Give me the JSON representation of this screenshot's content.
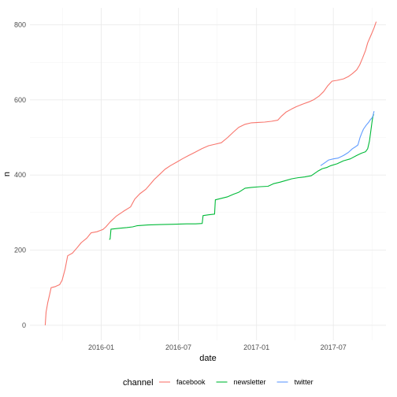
{
  "chart_data": {
    "type": "line",
    "title": "",
    "xlabel": "date",
    "ylabel": "n",
    "x_tick_labels": [
      "2016-01",
      "2016-07",
      "2017-01",
      "2017-07"
    ],
    "x_tick_dates": [
      "2016-01-01",
      "2016-07-01",
      "2017-01-01",
      "2017-07-01"
    ],
    "y_tick_labels": [
      "0",
      "200",
      "400",
      "600",
      "800"
    ],
    "y_ticks": [
      0,
      200,
      400,
      600,
      800
    ],
    "xlim": [
      "2015-07-17",
      "2017-11-02"
    ],
    "ylim": [
      -40,
      845
    ],
    "grid": true,
    "legend": {
      "title": "channel",
      "position": "bottom"
    },
    "series": [
      {
        "name": "facebook",
        "color": "#F8766D",
        "points": [
          [
            "2015-08-22",
            0
          ],
          [
            "2015-08-24",
            35
          ],
          [
            "2015-08-28",
            60
          ],
          [
            "2015-09-01",
            80
          ],
          [
            "2015-09-05",
            100
          ],
          [
            "2015-09-15",
            103
          ],
          [
            "2015-09-25",
            108
          ],
          [
            "2015-10-01",
            120
          ],
          [
            "2015-10-08",
            150
          ],
          [
            "2015-10-14",
            185
          ],
          [
            "2015-10-25",
            192
          ],
          [
            "2015-11-04",
            205
          ],
          [
            "2015-11-15",
            220
          ],
          [
            "2015-11-28",
            232
          ],
          [
            "2015-12-08",
            246
          ],
          [
            "2015-12-22",
            249
          ],
          [
            "2016-01-05",
            255
          ],
          [
            "2016-01-12",
            262
          ],
          [
            "2016-01-22",
            275
          ],
          [
            "2016-02-05",
            290
          ],
          [
            "2016-02-22",
            303
          ],
          [
            "2016-03-10",
            315
          ],
          [
            "2016-03-20",
            336
          ],
          [
            "2016-04-01",
            350
          ],
          [
            "2016-04-15",
            362
          ],
          [
            "2016-04-25",
            375
          ],
          [
            "2016-05-05",
            388
          ],
          [
            "2016-05-18",
            402
          ],
          [
            "2016-05-30",
            415
          ],
          [
            "2016-06-12",
            425
          ],
          [
            "2016-06-28",
            435
          ],
          [
            "2016-07-10",
            443
          ],
          [
            "2016-07-25",
            452
          ],
          [
            "2016-08-08",
            460
          ],
          [
            "2016-08-25",
            470
          ],
          [
            "2016-09-10",
            478
          ],
          [
            "2016-09-25",
            482
          ],
          [
            "2016-10-10",
            486
          ],
          [
            "2016-10-25",
            500
          ],
          [
            "2016-11-08",
            515
          ],
          [
            "2016-11-20",
            527
          ],
          [
            "2016-12-05",
            535
          ],
          [
            "2016-12-20",
            539
          ],
          [
            "2017-01-05",
            540
          ],
          [
            "2017-01-20",
            541
          ],
          [
            "2017-02-05",
            543
          ],
          [
            "2017-02-20",
            546
          ],
          [
            "2017-03-01",
            557
          ],
          [
            "2017-03-12",
            568
          ],
          [
            "2017-03-25",
            576
          ],
          [
            "2017-04-05",
            582
          ],
          [
            "2017-04-20",
            589
          ],
          [
            "2017-05-05",
            595
          ],
          [
            "2017-05-15",
            600
          ],
          [
            "2017-05-28",
            610
          ],
          [
            "2017-06-08",
            622
          ],
          [
            "2017-06-18",
            638
          ],
          [
            "2017-06-28",
            650
          ],
          [
            "2017-07-10",
            652
          ],
          [
            "2017-07-25",
            656
          ],
          [
            "2017-08-05",
            662
          ],
          [
            "2017-08-15",
            670
          ],
          [
            "2017-08-25",
            680
          ],
          [
            "2017-09-01",
            693
          ],
          [
            "2017-09-08",
            712
          ],
          [
            "2017-09-15",
            732
          ],
          [
            "2017-09-20",
            752
          ],
          [
            "2017-09-25",
            765
          ],
          [
            "2017-09-30",
            778
          ],
          [
            "2017-10-05",
            792
          ],
          [
            "2017-10-10",
            808
          ]
        ]
      },
      {
        "name": "newsletter",
        "color": "#00BA38",
        "points": [
          [
            "2016-01-20",
            228
          ],
          [
            "2016-01-22",
            230
          ],
          [
            "2016-01-24",
            256
          ],
          [
            "2016-02-10",
            258
          ],
          [
            "2016-03-01",
            260
          ],
          [
            "2016-03-15",
            262
          ],
          [
            "2016-03-25",
            265
          ],
          [
            "2016-04-20",
            267
          ],
          [
            "2016-05-20",
            268
          ],
          [
            "2016-06-20",
            269
          ],
          [
            "2016-07-20",
            270
          ],
          [
            "2016-08-10",
            270
          ],
          [
            "2016-08-26",
            271
          ],
          [
            "2016-08-28",
            292
          ],
          [
            "2016-09-10",
            294
          ],
          [
            "2016-09-24",
            296
          ],
          [
            "2016-09-26",
            334
          ],
          [
            "2016-10-10",
            338
          ],
          [
            "2016-10-25",
            342
          ],
          [
            "2016-11-08",
            349
          ],
          [
            "2016-11-20",
            354
          ],
          [
            "2016-12-05",
            365
          ],
          [
            "2016-12-20",
            367
          ],
          [
            "2017-01-10",
            369
          ],
          [
            "2017-01-28",
            370
          ],
          [
            "2017-02-10",
            377
          ],
          [
            "2017-02-25",
            381
          ],
          [
            "2017-03-10",
            385
          ],
          [
            "2017-03-25",
            390
          ],
          [
            "2017-04-10",
            393
          ],
          [
            "2017-04-25",
            395
          ],
          [
            "2017-05-10",
            398
          ],
          [
            "2017-05-25",
            410
          ],
          [
            "2017-06-05",
            417
          ],
          [
            "2017-06-15",
            420
          ],
          [
            "2017-06-25",
            425
          ],
          [
            "2017-07-10",
            430
          ],
          [
            "2017-07-25",
            438
          ],
          [
            "2017-08-10",
            443
          ],
          [
            "2017-08-25",
            452
          ],
          [
            "2017-09-05",
            458
          ],
          [
            "2017-09-15",
            462
          ],
          [
            "2017-09-20",
            470
          ],
          [
            "2017-09-24",
            490
          ],
          [
            "2017-09-27",
            515
          ],
          [
            "2017-09-30",
            540
          ],
          [
            "2017-10-02",
            555
          ],
          [
            "2017-10-04",
            562
          ]
        ]
      },
      {
        "name": "twitter",
        "color": "#619CFF",
        "points": [
          [
            "2017-06-01",
            425
          ],
          [
            "2017-06-10",
            432
          ],
          [
            "2017-06-20",
            440
          ],
          [
            "2017-07-01",
            443
          ],
          [
            "2017-07-12",
            445
          ],
          [
            "2017-07-25",
            452
          ],
          [
            "2017-08-05",
            460
          ],
          [
            "2017-08-15",
            470
          ],
          [
            "2017-08-22",
            475
          ],
          [
            "2017-08-28",
            480
          ],
          [
            "2017-09-02",
            500
          ],
          [
            "2017-09-06",
            512
          ],
          [
            "2017-09-10",
            522
          ],
          [
            "2017-09-16",
            532
          ],
          [
            "2017-09-22",
            540
          ],
          [
            "2017-09-26",
            547
          ],
          [
            "2017-09-30",
            552
          ],
          [
            "2017-10-02",
            556
          ],
          [
            "2017-10-05",
            570
          ]
        ]
      }
    ]
  }
}
